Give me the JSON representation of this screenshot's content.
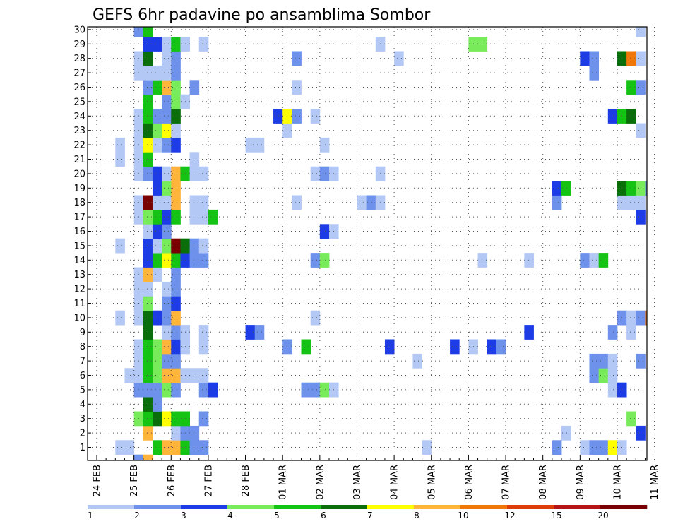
{
  "chart_data": {
    "type": "heatmap",
    "title": "GEFS 6hr padavine po ansamblima Sombor",
    "xlabel": "",
    "ylabel": "",
    "x_tick_labels": [
      "24 FEB",
      "25 FEB",
      "26 FEB",
      "27 FEB",
      "28 FEB",
      "01 MAR",
      "02 MAR",
      "03 MAR",
      "04 MAR",
      "05 MAR",
      "06 MAR",
      "07 MAR",
      "08 MAR",
      "09 MAR",
      "10 MAR",
      "11 MAR"
    ],
    "y_tick_labels": [
      "1",
      "2",
      "3",
      "4",
      "5",
      "6",
      "7",
      "8",
      "9",
      "10",
      "11",
      "12",
      "13",
      "14",
      "15",
      "16",
      "17",
      "18",
      "19",
      "20",
      "21",
      "22",
      "23",
      "24",
      "25",
      "26",
      "27",
      "28",
      "29",
      "30"
    ],
    "ylim": [
      0.5,
      30.5
    ],
    "x_step_hours": 6,
    "grid": true,
    "legend": {
      "placement": "bottom",
      "labels": [
        "1",
        "2",
        "3",
        "4",
        "5",
        "6",
        "7",
        "8",
        "10",
        "12",
        "15",
        "20"
      ],
      "colors": [
        "#b4c8f5",
        "#6e91eb",
        "#1e3ce6",
        "#78eb5a",
        "#14c314",
        "#0a6e0a",
        "#ffff00",
        "#ffb43c",
        "#f0780a",
        "#dc3c0a",
        "#b41414",
        "#780000"
      ]
    },
    "cells_note": "member -> list of [time_step, color_class]; time_step counts 6-hour steps from 24 FEB 00z; color_class 1..12 indexes legend.colors",
    "cells": {
      "1": [
        [
          2,
          1
        ],
        [
          3,
          1
        ],
        [
          6,
          5
        ],
        [
          7,
          8
        ],
        [
          8,
          8
        ],
        [
          9,
          5
        ],
        [
          10,
          2
        ],
        [
          11,
          2
        ],
        [
          35,
          1
        ],
        [
          49,
          2
        ],
        [
          52,
          1
        ],
        [
          53,
          2
        ],
        [
          54,
          2
        ],
        [
          55,
          7
        ],
        [
          56,
          1
        ]
      ],
      "2": [
        [
          5,
          8
        ],
        [
          8,
          1
        ],
        [
          9,
          2
        ],
        [
          10,
          2
        ],
        [
          50,
          1
        ],
        [
          58,
          3
        ]
      ],
      "3": [
        [
          4,
          4
        ],
        [
          5,
          5
        ],
        [
          6,
          6
        ],
        [
          7,
          7
        ],
        [
          8,
          5
        ],
        [
          9,
          5
        ],
        [
          11,
          2
        ],
        [
          57,
          4
        ]
      ],
      "4": [
        [
          5,
          6
        ],
        [
          6,
          2
        ]
      ],
      "5": [
        [
          4,
          2
        ],
        [
          5,
          2
        ],
        [
          6,
          2
        ],
        [
          7,
          4
        ],
        [
          8,
          2
        ],
        [
          11,
          2
        ],
        [
          12,
          3
        ],
        [
          22,
          2
        ],
        [
          23,
          2
        ],
        [
          24,
          4
        ],
        [
          25,
          1
        ],
        [
          55,
          1
        ],
        [
          56,
          3
        ]
      ],
      "6": [
        [
          3,
          1
        ],
        [
          4,
          1
        ],
        [
          5,
          5
        ],
        [
          6,
          4
        ],
        [
          7,
          8
        ],
        [
          8,
          8
        ],
        [
          9,
          1
        ],
        [
          10,
          1
        ],
        [
          11,
          1
        ],
        [
          53,
          2
        ],
        [
          54,
          4
        ],
        [
          55,
          1
        ]
      ],
      "7": [
        [
          4,
          1
        ],
        [
          5,
          5
        ],
        [
          6,
          4
        ],
        [
          7,
          2
        ],
        [
          8,
          2
        ],
        [
          34,
          1
        ],
        [
          53,
          2
        ],
        [
          54,
          2
        ],
        [
          55,
          1
        ],
        [
          58,
          2
        ]
      ],
      "8": [
        [
          4,
          1
        ],
        [
          5,
          5
        ],
        [
          6,
          4
        ],
        [
          7,
          8
        ],
        [
          8,
          3
        ],
        [
          9,
          1
        ],
        [
          11,
          1
        ],
        [
          20,
          2
        ],
        [
          22,
          5
        ],
        [
          31,
          3
        ],
        [
          38,
          3
        ],
        [
          40,
          1
        ],
        [
          42,
          3
        ],
        [
          43,
          2
        ]
      ],
      "9": [
        [
          5,
          6
        ],
        [
          7,
          1
        ],
        [
          8,
          2
        ],
        [
          9,
          1
        ],
        [
          11,
          1
        ],
        [
          16,
          3
        ],
        [
          17,
          2
        ],
        [
          46,
          3
        ],
        [
          55,
          2
        ],
        [
          57,
          1
        ]
      ],
      "10": [
        [
          2,
          1
        ],
        [
          4,
          1
        ],
        [
          5,
          6
        ],
        [
          6,
          3
        ],
        [
          7,
          2
        ],
        [
          8,
          8
        ],
        [
          23,
          1
        ],
        [
          56,
          2
        ],
        [
          57,
          1
        ],
        [
          58,
          2
        ],
        [
          59,
          9
        ],
        [
          60,
          2
        ]
      ],
      "11": [
        [
          4,
          1
        ],
        [
          5,
          4
        ],
        [
          7,
          2
        ],
        [
          8,
          3
        ]
      ],
      "12": [
        [
          4,
          1
        ],
        [
          5,
          1
        ],
        [
          7,
          1
        ],
        [
          8,
          2
        ]
      ],
      "13": [
        [
          4,
          1
        ],
        [
          5,
          8
        ],
        [
          6,
          1
        ],
        [
          8,
          2
        ]
      ],
      "14": [
        [
          5,
          3
        ],
        [
          6,
          5
        ],
        [
          7,
          7
        ],
        [
          8,
          5
        ],
        [
          9,
          3
        ],
        [
          10,
          2
        ],
        [
          11,
          2
        ],
        [
          23,
          2
        ],
        [
          24,
          4
        ],
        [
          41,
          1
        ],
        [
          46,
          1
        ],
        [
          52,
          2
        ],
        [
          53,
          1
        ],
        [
          54,
          5
        ]
      ],
      "15": [
        [
          2,
          1
        ],
        [
          5,
          3
        ],
        [
          6,
          1
        ],
        [
          7,
          4
        ],
        [
          8,
          12
        ],
        [
          9,
          6
        ],
        [
          10,
          2
        ],
        [
          11,
          1
        ]
      ],
      "16": [
        [
          5,
          1
        ],
        [
          6,
          3
        ],
        [
          7,
          2
        ],
        [
          24,
          3
        ],
        [
          25,
          1
        ]
      ],
      "17": [
        [
          4,
          1
        ],
        [
          5,
          4
        ],
        [
          6,
          5
        ],
        [
          7,
          3
        ],
        [
          8,
          5
        ],
        [
          10,
          1
        ],
        [
          11,
          1
        ],
        [
          12,
          5
        ],
        [
          58,
          3
        ]
      ],
      "18": [
        [
          4,
          1
        ],
        [
          5,
          12
        ],
        [
          6,
          1
        ],
        [
          7,
          1
        ],
        [
          8,
          8
        ],
        [
          10,
          1
        ],
        [
          11,
          1
        ],
        [
          21,
          1
        ],
        [
          28,
          1
        ],
        [
          29,
          2
        ],
        [
          30,
          1
        ],
        [
          49,
          2
        ],
        [
          56,
          1
        ],
        [
          57,
          1
        ],
        [
          58,
          1
        ]
      ],
      "19": [
        [
          6,
          3
        ],
        [
          7,
          4
        ],
        [
          8,
          8
        ],
        [
          49,
          3
        ],
        [
          50,
          5
        ],
        [
          56,
          6
        ],
        [
          57,
          5
        ],
        [
          58,
          4
        ],
        [
          59,
          2
        ],
        [
          60,
          1
        ]
      ],
      "20": [
        [
          4,
          1
        ],
        [
          5,
          2
        ],
        [
          6,
          3
        ],
        [
          7,
          1
        ],
        [
          8,
          8
        ],
        [
          9,
          5
        ],
        [
          10,
          1
        ],
        [
          11,
          1
        ],
        [
          23,
          1
        ],
        [
          24,
          2
        ],
        [
          25,
          1
        ],
        [
          30,
          1
        ]
      ],
      "21": [
        [
          2,
          1
        ],
        [
          4,
          1
        ],
        [
          5,
          5
        ],
        [
          10,
          1
        ]
      ],
      "22": [
        [
          2,
          1
        ],
        [
          4,
          1
        ],
        [
          5,
          7
        ],
        [
          6,
          1
        ],
        [
          7,
          2
        ],
        [
          8,
          3
        ],
        [
          16,
          1
        ],
        [
          17,
          1
        ],
        [
          24,
          1
        ]
      ],
      "23": [
        [
          4,
          1
        ],
        [
          5,
          6
        ],
        [
          6,
          4
        ],
        [
          7,
          7
        ],
        [
          8,
          1
        ],
        [
          20,
          1
        ],
        [
          58,
          1
        ]
      ],
      "24": [
        [
          4,
          1
        ],
        [
          5,
          5
        ],
        [
          6,
          2
        ],
        [
          7,
          2
        ],
        [
          8,
          6
        ],
        [
          19,
          3
        ],
        [
          20,
          7
        ],
        [
          21,
          2
        ],
        [
          23,
          1
        ],
        [
          55,
          3
        ],
        [
          56,
          5
        ],
        [
          57,
          6
        ]
      ],
      "25": [
        [
          5,
          5
        ],
        [
          7,
          2
        ],
        [
          8,
          4
        ],
        [
          9,
          1
        ]
      ],
      "26": [
        [
          5,
          2
        ],
        [
          6,
          5
        ],
        [
          7,
          8
        ],
        [
          8,
          4
        ],
        [
          10,
          2
        ],
        [
          21,
          1
        ],
        [
          57,
          5
        ],
        [
          58,
          2
        ]
      ],
      "27": [
        [
          4,
          1
        ],
        [
          5,
          1
        ],
        [
          6,
          1
        ],
        [
          7,
          1
        ],
        [
          8,
          2
        ],
        [
          53,
          2
        ]
      ],
      "28": [
        [
          4,
          1
        ],
        [
          5,
          6
        ],
        [
          7,
          1
        ],
        [
          8,
          2
        ],
        [
          21,
          2
        ],
        [
          32,
          1
        ],
        [
          52,
          3
        ],
        [
          53,
          2
        ],
        [
          56,
          6
        ],
        [
          57,
          9
        ],
        [
          58,
          1
        ]
      ],
      "29": [
        [
          5,
          3
        ],
        [
          6,
          3
        ],
        [
          7,
          1
        ],
        [
          8,
          5
        ],
        [
          9,
          1
        ],
        [
          11,
          1
        ],
        [
          30,
          1
        ],
        [
          40,
          4
        ],
        [
          41,
          4
        ]
      ],
      "30": [
        [
          4,
          2
        ],
        [
          5,
          5
        ],
        [
          58,
          1
        ]
      ],
      "0": [
        [
          4,
          2
        ],
        [
          5,
          8
        ]
      ]
    }
  }
}
